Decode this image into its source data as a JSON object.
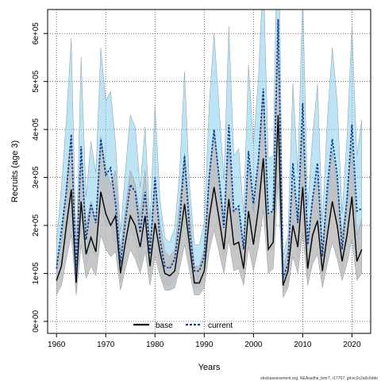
{
  "chart_data": {
    "type": "area",
    "xlabel": "Years",
    "ylabel": "Recruits (age 3)",
    "xlim": [
      1958.2,
      2023.8
    ],
    "ylim": [
      -25000,
      650000
    ],
    "xticks": [
      1960,
      1970,
      1980,
      1990,
      2000,
      2010,
      2020
    ],
    "xtick_labels": [
      "1960",
      "1970",
      "1980",
      "1990",
      "2000",
      "2010",
      "2020"
    ],
    "yticks": [
      0,
      100000,
      200000,
      300000,
      400000,
      500000,
      600000
    ],
    "ytick_labels": [
      "0e+00",
      "1e+05",
      "2e+05",
      "3e+05",
      "4e+05",
      "5e+05",
      "6e+05"
    ],
    "grid": true,
    "legend_position": "bottom-center",
    "x": [
      1960,
      1961,
      1962,
      1963,
      1964,
      1965,
      1966,
      1967,
      1968,
      1969,
      1970,
      1971,
      1972,
      1973,
      1974,
      1975,
      1976,
      1977,
      1978,
      1979,
      1980,
      1981,
      1982,
      1983,
      1984,
      1985,
      1986,
      1987,
      1988,
      1989,
      1990,
      1991,
      1992,
      1993,
      1994,
      1995,
      1996,
      1997,
      1998,
      1999,
      2000,
      2001,
      2002,
      2003,
      2004,
      2005,
      2006,
      2007,
      2008,
      2009,
      2010,
      2011,
      2012,
      2013,
      2014,
      2015,
      2016,
      2017,
      2018,
      2019,
      2020,
      2021,
      2022
    ],
    "series": [
      {
        "name": "base",
        "color": "#000000",
        "band_color": "#bdbdbd",
        "values": [
          85000,
          115000,
          200000,
          275000,
          80000,
          250000,
          140000,
          175000,
          145000,
          270000,
          225000,
          200000,
          220000,
          100000,
          165000,
          220000,
          200000,
          155000,
          220000,
          115000,
          205000,
          145000,
          100000,
          95000,
          105000,
          170000,
          245000,
          160000,
          80000,
          80000,
          105000,
          215000,
          280000,
          215000,
          150000,
          255000,
          160000,
          165000,
          110000,
          230000,
          160000,
          235000,
          340000,
          150000,
          165000,
          430000,
          75000,
          105000,
          200000,
          155000,
          280000,
          110000,
          180000,
          210000,
          105000,
          180000,
          250000,
          200000,
          125000,
          180000,
          260000,
          125000,
          150000
        ],
        "lower": [
          55000,
          75000,
          130000,
          180000,
          55000,
          160000,
          90000,
          115000,
          95000,
          180000,
          150000,
          135000,
          145000,
          65000,
          110000,
          150000,
          130000,
          100000,
          145000,
          75000,
          135000,
          95000,
          65000,
          65000,
          70000,
          110000,
          160000,
          105000,
          55000,
          55000,
          70000,
          145000,
          190000,
          145000,
          100000,
          170000,
          105000,
          110000,
          75000,
          155000,
          105000,
          155000,
          230000,
          100000,
          110000,
          290000,
          50000,
          70000,
          135000,
          100000,
          185000,
          75000,
          120000,
          140000,
          70000,
          120000,
          165000,
          130000,
          85000,
          120000,
          170000,
          85000,
          100000
        ],
        "upper": [
          120000,
          165000,
          285000,
          390000,
          115000,
          355000,
          200000,
          250000,
          205000,
          385000,
          320000,
          285000,
          315000,
          145000,
          235000,
          315000,
          285000,
          220000,
          315000,
          165000,
          290000,
          205000,
          145000,
          135000,
          150000,
          245000,
          350000,
          230000,
          115000,
          115000,
          150000,
          305000,
          400000,
          305000,
          215000,
          365000,
          230000,
          235000,
          160000,
          330000,
          230000,
          335000,
          485000,
          215000,
          235000,
          615000,
          110000,
          150000,
          285000,
          220000,
          400000,
          160000,
          255000,
          300000,
          150000,
          255000,
          355000,
          285000,
          180000,
          255000,
          370000,
          180000,
          215000
        ]
      },
      {
        "name": "current",
        "color": "#0b3d91",
        "band_color": "#87ceeb",
        "values": [
          110000,
          190000,
          270000,
          390000,
          100000,
          365000,
          170000,
          245000,
          205000,
          380000,
          305000,
          320000,
          245000,
          120000,
          210000,
          285000,
          270000,
          185000,
          270000,
          140000,
          300000,
          170000,
          115000,
          110000,
          130000,
          205000,
          345000,
          190000,
          105000,
          105000,
          135000,
          300000,
          400000,
          300000,
          195000,
          410000,
          230000,
          240000,
          150000,
          355000,
          245000,
          335000,
          485000,
          225000,
          230000,
          630000,
          90000,
          120000,
          330000,
          205000,
          455000,
          160000,
          255000,
          330000,
          135000,
          280000,
          380000,
          305000,
          150000,
          255000,
          410000,
          230000,
          235000
        ],
        "lower": [
          75000,
          125000,
          175000,
          250000,
          65000,
          235000,
          115000,
          160000,
          135000,
          245000,
          195000,
          205000,
          160000,
          80000,
          140000,
          185000,
          175000,
          120000,
          175000,
          95000,
          195000,
          110000,
          75000,
          75000,
          85000,
          135000,
          225000,
          125000,
          70000,
          70000,
          90000,
          195000,
          260000,
          195000,
          130000,
          265000,
          150000,
          155000,
          100000,
          230000,
          160000,
          215000,
          315000,
          150000,
          150000,
          410000,
          60000,
          80000,
          215000,
          135000,
          295000,
          105000,
          165000,
          215000,
          90000,
          180000,
          245000,
          200000,
          100000,
          165000,
          265000,
          150000,
          155000
        ],
        "upper": [
          165000,
          280000,
          420000,
          590000,
          150000,
          550000,
          260000,
          375000,
          310000,
          570000,
          460000,
          480000,
          370000,
          185000,
          315000,
          430000,
          405000,
          280000,
          405000,
          210000,
          450000,
          255000,
          175000,
          165000,
          195000,
          310000,
          520000,
          285000,
          160000,
          160000,
          205000,
          450000,
          600000,
          450000,
          295000,
          615000,
          345000,
          360000,
          225000,
          535000,
          370000,
          505000,
          730000,
          340000,
          345000,
          900000,
          135000,
          180000,
          495000,
          310000,
          685000,
          240000,
          385000,
          495000,
          205000,
          420000,
          570000,
          460000,
          225000,
          385000,
          615000,
          345000,
          420000
        ]
      }
    ]
  },
  "footnote": "stockassessment.org, NEAsaithe_bmr7, r17767, git:ec2c2a0c6dde"
}
